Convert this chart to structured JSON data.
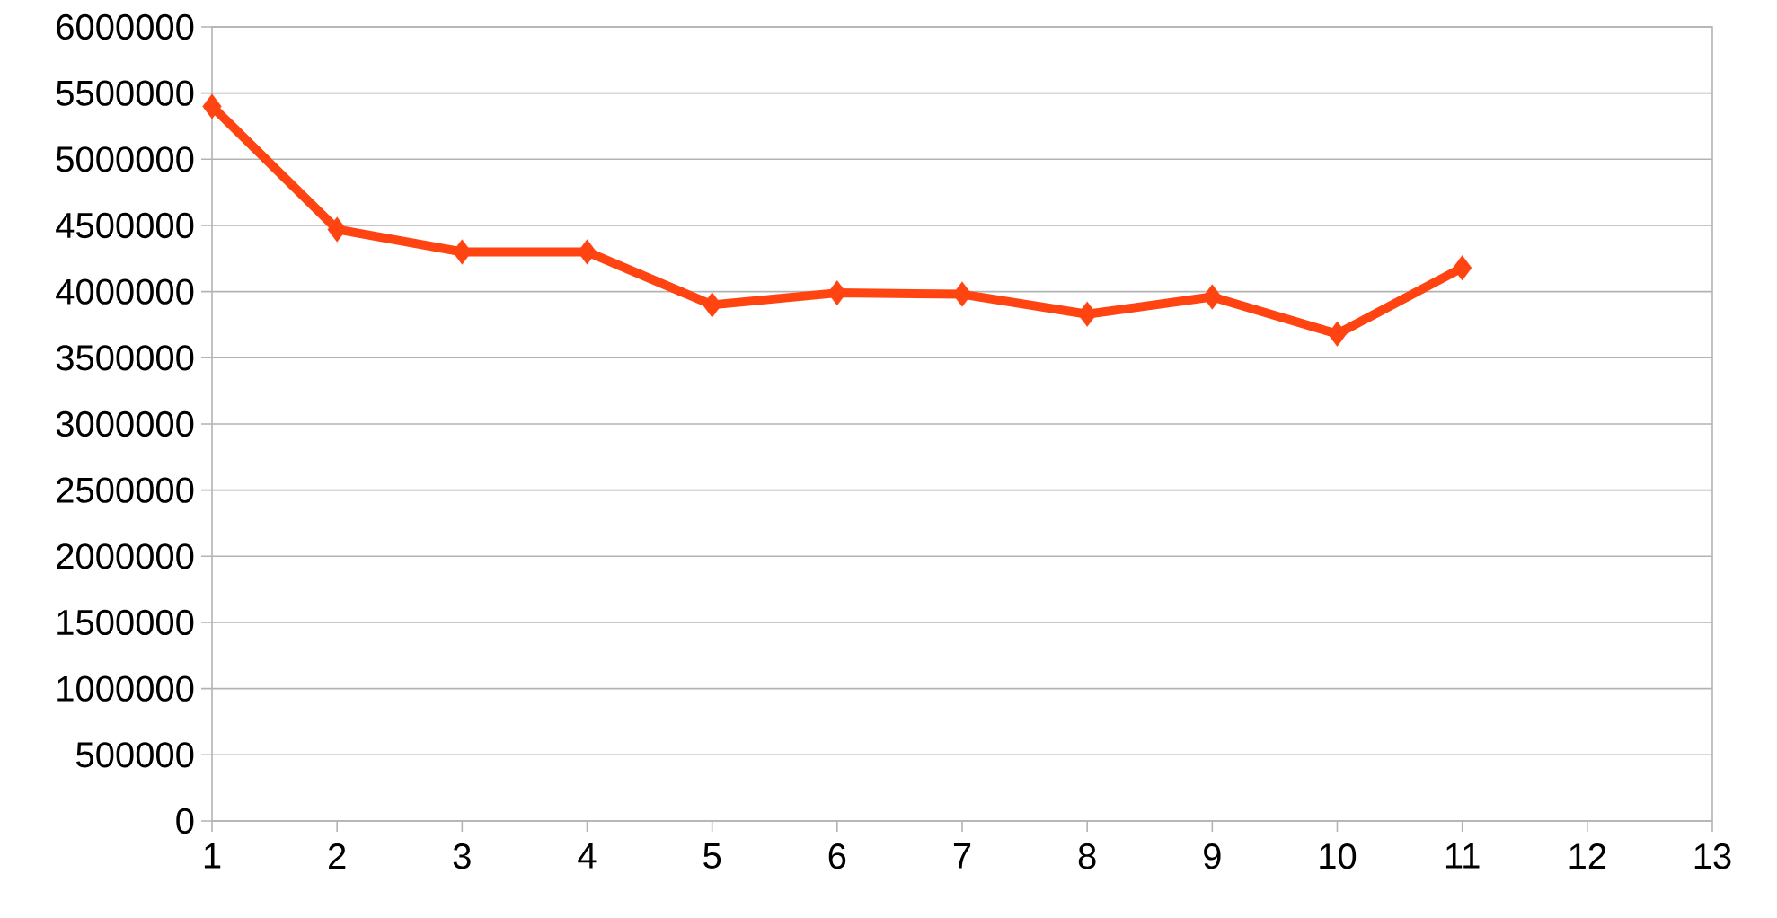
{
  "chart_data": {
    "type": "line",
    "x": [
      1,
      2,
      3,
      4,
      5,
      6,
      7,
      8,
      9,
      10,
      11
    ],
    "values": [
      5400000,
      4470000,
      4300000,
      4300000,
      3900000,
      3990000,
      3980000,
      3830000,
      3960000,
      3680000,
      4180000
    ],
    "color": "#ff4411",
    "marker": "diamond",
    "line_style": "solid",
    "grid": "y",
    "xlim": [
      1,
      13
    ],
    "xticks": [
      1,
      2,
      3,
      4,
      5,
      6,
      7,
      8,
      9,
      10,
      11,
      12,
      13
    ],
    "ylim": [
      0,
      6000000
    ],
    "yticks": [
      0,
      500000,
      1000000,
      1500000,
      2000000,
      2500000,
      3000000,
      3500000,
      4000000,
      4500000,
      5000000,
      5500000,
      6000000
    ]
  }
}
